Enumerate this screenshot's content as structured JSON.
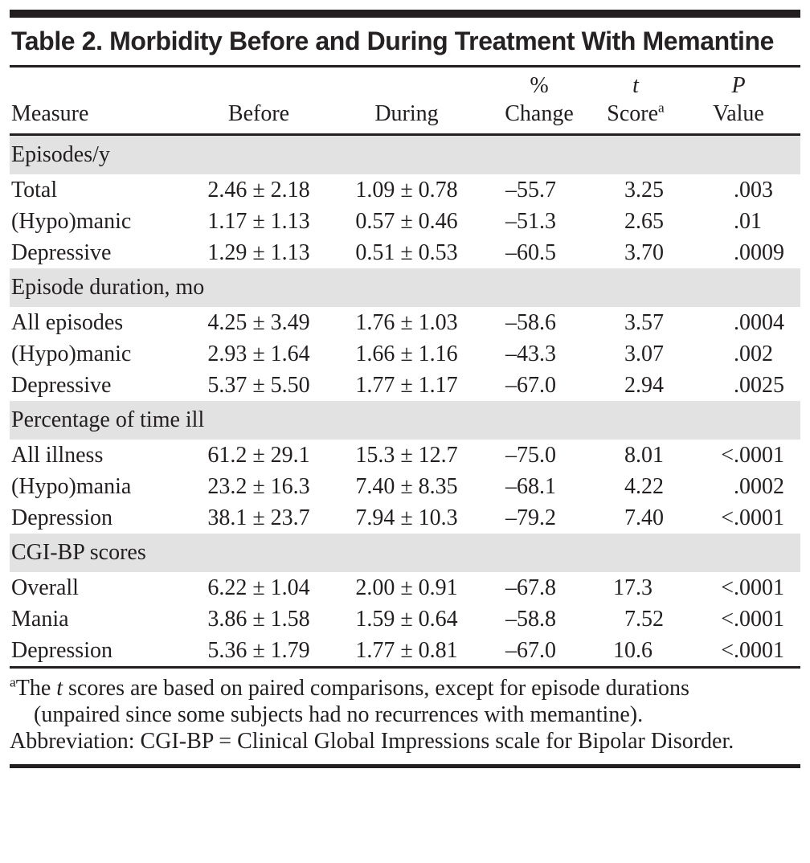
{
  "title": "Table 2. Morbidity Before and During Treatment With Memantine",
  "columns": {
    "measure": "Measure",
    "before": "Before",
    "during": "During",
    "change_top": "%",
    "change_bottom": "Change",
    "t_top": "t",
    "t_bottom": "Score",
    "t_sup": "a",
    "p_top": "P",
    "p_bottom": "Value"
  },
  "sections": [
    {
      "header": "Episodes/y",
      "rows": [
        {
          "measure": "Total",
          "before": "2.46 ± 2.18",
          "during": "1.09 ± 0.78",
          "change": "–55.7",
          "t": "3.25",
          "p": ".003"
        },
        {
          "measure": "(Hypo)manic",
          "before": "1.17 ± 1.13",
          "during": "0.57 ± 0.46",
          "change": "–51.3",
          "t": "2.65",
          "p": ".01"
        },
        {
          "measure": "Depressive",
          "before": "1.29 ± 1.13",
          "during": "0.51 ± 0.53",
          "change": "–60.5",
          "t": "3.70",
          "p": ".0009"
        }
      ]
    },
    {
      "header": "Episode duration, mo",
      "rows": [
        {
          "measure": "All episodes",
          "before": "4.25 ± 3.49",
          "during": "1.76 ± 1.03",
          "change": "–58.6",
          "t": "3.57",
          "p": ".0004"
        },
        {
          "measure": "(Hypo)manic",
          "before": "2.93 ± 1.64",
          "during": "1.66 ± 1.16",
          "change": "–43.3",
          "t": "3.07",
          "p": ".002"
        },
        {
          "measure": "Depressive",
          "before": "5.37 ± 5.50",
          "during": "1.77 ± 1.17",
          "change": "–67.0",
          "t": "2.94",
          "p": ".0025"
        }
      ]
    },
    {
      "header": "Percentage of time ill",
      "rows": [
        {
          "measure": "All illness",
          "before": "61.2 ± 29.1",
          "during": "15.3 ± 12.7",
          "change": "–75.0",
          "t": "8.01",
          "p": "<.0001"
        },
        {
          "measure": "(Hypo)mania",
          "before": "23.2 ± 16.3",
          "during": "7.40 ± 8.35",
          "change": "–68.1",
          "t": "4.22",
          "p": ".0002"
        },
        {
          "measure": "Depression",
          "before": "38.1 ± 23.7",
          "during": "7.94 ± 10.3",
          "change": "–79.2",
          "t": "7.40",
          "p": "<.0001"
        }
      ]
    },
    {
      "header": "CGI-BP scores",
      "rows": [
        {
          "measure": "Overall",
          "before": "6.22 ± 1.04",
          "during": "2.00 ± 0.91",
          "change": "–67.8",
          "t": "17.3",
          "p": "<.0001"
        },
        {
          "measure": "Mania",
          "before": "3.86 ± 1.58",
          "during": "1.59 ± 0.64",
          "change": "–58.8",
          "t": "7.52",
          "p": "<.0001"
        },
        {
          "measure": "Depression",
          "before": "5.36 ± 1.79",
          "during": "1.77 ± 0.81",
          "change": "–67.0",
          "t": "10.6",
          "p": "<.0001"
        }
      ]
    }
  ],
  "footnotes": {
    "note_sup": "a",
    "note_pre": "The ",
    "note_italic": "t",
    "note_rest": " scores are based on paired comparisons, except for episode durations (unpaired since some subjects had no recurrences with memantine).",
    "abbreviation": "Abbreviation: CGI-BP = Clinical Global Impressions scale for Bipolar Disorder."
  },
  "colors": {
    "band_gray": "#e2e2e2",
    "rule_black": "#231f20",
    "text": "#231f20"
  }
}
